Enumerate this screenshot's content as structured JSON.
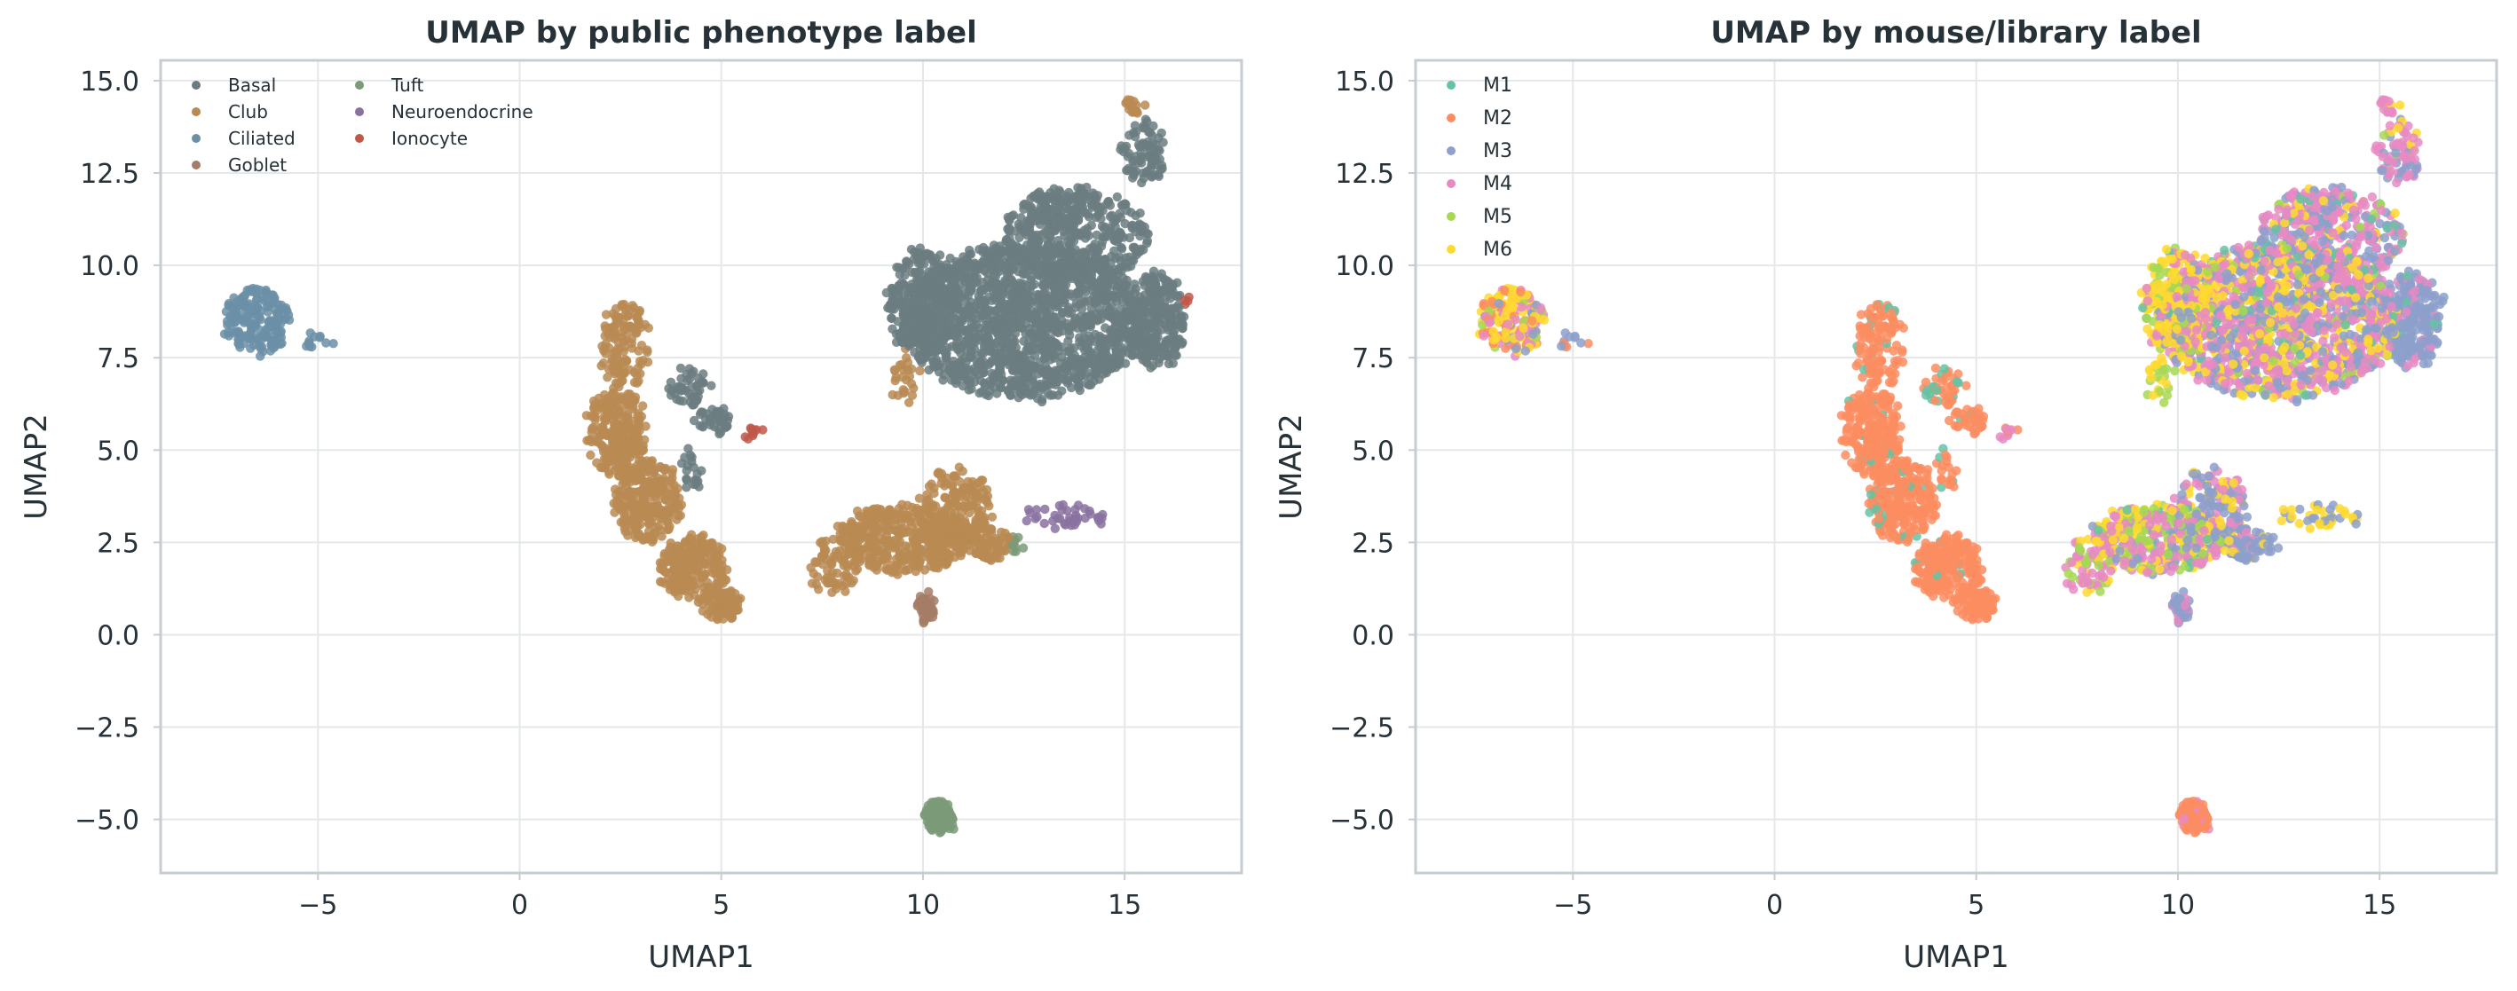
{
  "chart_data": [
    {
      "type": "scatter",
      "title": "UMAP by public phenotype label",
      "xlabel": "UMAP1",
      "ylabel": "UMAP2",
      "xlim": [
        -8.9,
        17.9
      ],
      "ylim": [
        -6.45,
        15.55
      ],
      "xticks": [
        -5,
        0,
        5,
        10,
        15
      ],
      "xtick_labels": [
        "−5",
        "0",
        "5",
        "10",
        "15"
      ],
      "yticks": [
        -5.0,
        -2.5,
        0.0,
        2.5,
        5.0,
        7.5,
        10.0,
        12.5,
        15.0
      ],
      "ytick_labels": [
        "−5.0",
        "−2.5",
        "0.0",
        "2.5",
        "5.0",
        "7.5",
        "10.0",
        "12.5",
        "15.0"
      ],
      "grid": true,
      "legend_position": "top-left",
      "legend_columns": 2,
      "series": [
        {
          "name": "Basal",
          "color": "#6b7c80"
        },
        {
          "name": "Club",
          "color": "#b88a52"
        },
        {
          "name": "Ciliated",
          "color": "#6b8fa7"
        },
        {
          "name": "Goblet",
          "color": "#a57c66"
        },
        {
          "name": "Tuft",
          "color": "#7a9a78"
        },
        {
          "name": "Neuroendocrine",
          "color": "#8a72a0"
        },
        {
          "name": "Ionocyte",
          "color": "#c0584a"
        }
      ]
    },
    {
      "type": "scatter",
      "title": "UMAP by mouse/library label",
      "xlabel": "UMAP1",
      "ylabel": "UMAP2",
      "xlim": [
        -8.9,
        17.9
      ],
      "ylim": [
        -6.45,
        15.55
      ],
      "xticks": [
        -5,
        0,
        5,
        10,
        15
      ],
      "xtick_labels": [
        "−5",
        "0",
        "5",
        "10",
        "15"
      ],
      "yticks": [
        -5.0,
        -2.5,
        0.0,
        2.5,
        5.0,
        7.5,
        10.0,
        12.5,
        15.0
      ],
      "ytick_labels": [
        "−5.0",
        "−2.5",
        "0.0",
        "2.5",
        "5.0",
        "7.5",
        "10.0",
        "12.5",
        "15.0"
      ],
      "grid": true,
      "legend_position": "top-left",
      "legend_columns": 1,
      "series": [
        {
          "name": "M1",
          "color": "#66c2a5"
        },
        {
          "name": "M2",
          "color": "#fc8d62"
        },
        {
          "name": "M3",
          "color": "#8da0cb"
        },
        {
          "name": "M4",
          "color": "#e78ac3"
        },
        {
          "name": "M5",
          "color": "#a6d854"
        },
        {
          "name": "M6",
          "color": "#ffd92f"
        }
      ]
    }
  ],
  "clusters": [
    {
      "cx": -6.5,
      "cy": 8.5,
      "rx": 0.8,
      "ry": 0.9,
      "n": 180,
      "a": "Ciliated",
      "m": {
        "M6": 0.35,
        "M4": 0.25,
        "M2": 0.2,
        "M3": 0.12,
        "M5": 0.08
      }
    },
    {
      "cx": -5.0,
      "cy": 7.9,
      "rx": 0.35,
      "ry": 0.2,
      "n": 12,
      "a": "Ciliated",
      "m": {
        "M3": 0.6,
        "M2": 0.4
      }
    },
    {
      "cx": 2.6,
      "cy": 7.8,
      "rx": 0.6,
      "ry": 1.2,
      "n": 120,
      "a": "Club",
      "m": {
        "M2": 0.92,
        "M1": 0.08
      }
    },
    {
      "cx": 2.4,
      "cy": 5.5,
      "rx": 0.7,
      "ry": 1.2,
      "n": 220,
      "a": "Club",
      "m": {
        "M2": 0.95,
        "M1": 0.05
      }
    },
    {
      "cx": 3.2,
      "cy": 3.6,
      "rx": 0.85,
      "ry": 1.1,
      "n": 250,
      "a": "Club",
      "m": {
        "M2": 0.95,
        "M1": 0.05
      }
    },
    {
      "cx": 4.3,
      "cy": 1.8,
      "rx": 0.8,
      "ry": 0.9,
      "n": 220,
      "a": "Club",
      "m": {
        "M2": 0.95,
        "M1": 0.05
      }
    },
    {
      "cx": 5.0,
      "cy": 0.8,
      "rx": 0.5,
      "ry": 0.45,
      "n": 90,
      "a": "Club",
      "m": {
        "M2": 0.97,
        "M1": 0.03
      }
    },
    {
      "cx": 4.2,
      "cy": 6.7,
      "rx": 0.5,
      "ry": 0.5,
      "n": 45,
      "a": "Basal",
      "m": {
        "M2": 0.8,
        "M1": 0.2
      }
    },
    {
      "cx": 4.8,
      "cy": 5.8,
      "rx": 0.45,
      "ry": 0.35,
      "n": 35,
      "a": "Basal",
      "m": {
        "M2": 0.75,
        "M1": 0.25
      }
    },
    {
      "cx": 4.2,
      "cy": 4.5,
      "rx": 0.4,
      "ry": 0.6,
      "n": 20,
      "a": "Basal",
      "m": {
        "M2": 0.9,
        "M1": 0.1
      }
    },
    {
      "cx": 5.8,
      "cy": 5.5,
      "rx": 0.3,
      "ry": 0.12,
      "n": 10,
      "a": "Ionocyte",
      "m": {
        "M4": 0.6,
        "M2": 0.4
      }
    },
    {
      "cx": 12.5,
      "cy": 8.5,
      "rx": 3.0,
      "ry": 2.1,
      "n": 1500,
      "a": "Basal",
      "m": {
        "M4": 0.4,
        "M6": 0.25,
        "M3": 0.25,
        "M5": 0.05,
        "M1": 0.05
      }
    },
    {
      "cx": 13.8,
      "cy": 10.8,
      "rx": 1.8,
      "ry": 1.3,
      "n": 450,
      "a": "Basal",
      "m": {
        "M4": 0.5,
        "M3": 0.3,
        "M6": 0.1,
        "M5": 0.05,
        "M1": 0.05
      }
    },
    {
      "cx": 15.5,
      "cy": 13.0,
      "rx": 0.5,
      "ry": 0.9,
      "n": 80,
      "a": "Basal",
      "m": {
        "M4": 0.55,
        "M3": 0.25,
        "M6": 0.15,
        "M5": 0.05
      }
    },
    {
      "cx": 15.2,
      "cy": 14.3,
      "rx": 0.25,
      "ry": 0.2,
      "n": 15,
      "a": "Club",
      "m": {
        "M4": 0.5,
        "M6": 0.5
      }
    },
    {
      "cx": 15.8,
      "cy": 8.5,
      "rx": 0.7,
      "ry": 1.3,
      "n": 250,
      "a": "Basal",
      "m": {
        "M3": 0.8,
        "M4": 0.15,
        "M1": 0.05
      }
    },
    {
      "cx": 10.0,
      "cy": 9.0,
      "rx": 0.9,
      "ry": 1.5,
      "n": 280,
      "a": "Basal",
      "m": {
        "M6": 0.6,
        "M5": 0.2,
        "M4": 0.15,
        "M1": 0.05
      }
    },
    {
      "cx": 9.5,
      "cy": 7.0,
      "rx": 0.3,
      "ry": 0.8,
      "n": 25,
      "a": "Club",
      "m": {
        "M5": 0.5,
        "M6": 0.5
      }
    },
    {
      "cx": 9.5,
      "cy": 2.6,
      "rx": 1.7,
      "ry": 0.9,
      "n": 420,
      "a": "Club",
      "m": {
        "M4": 0.4,
        "M6": 0.25,
        "M5": 0.2,
        "M3": 0.1,
        "M1": 0.05
      }
    },
    {
      "cx": 7.8,
      "cy": 1.9,
      "rx": 0.6,
      "ry": 0.8,
      "n": 70,
      "a": "Club",
      "m": {
        "M4": 0.55,
        "M5": 0.25,
        "M6": 0.2
      }
    },
    {
      "cx": 10.8,
      "cy": 3.5,
      "rx": 0.9,
      "ry": 1.0,
      "n": 160,
      "a": "Club",
      "m": {
        "M3": 0.5,
        "M4": 0.3,
        "M6": 0.2
      }
    },
    {
      "cx": 11.6,
      "cy": 2.5,
      "rx": 0.5,
      "ry": 0.5,
      "n": 80,
      "a": "Club",
      "m": {
        "M3": 0.7,
        "M4": 0.2,
        "M6": 0.1
      }
    },
    {
      "cx": 10.1,
      "cy": 0.7,
      "rx": 0.2,
      "ry": 0.45,
      "n": 40,
      "a": "Goblet",
      "m": {
        "M3": 0.8,
        "M4": 0.2
      }
    },
    {
      "cx": 12.3,
      "cy": 2.4,
      "rx": 0.1,
      "ry": 0.25,
      "n": 10,
      "a": "Tuft",
      "m": {
        "M3": 1.0
      }
    },
    {
      "cx": 13.5,
      "cy": 3.2,
      "rx": 1.1,
      "ry": 0.3,
      "n": 40,
      "a": "Neuroendocrine",
      "m": {
        "M6": 0.7,
        "M3": 0.3
      }
    },
    {
      "cx": 10.4,
      "cy": -4.9,
      "rx": 0.35,
      "ry": 0.45,
      "n": 110,
      "a": "Tuft",
      "m": {
        "M2": 0.9,
        "M4": 0.1
      }
    },
    {
      "cx": 16.5,
      "cy": 9.0,
      "rx": 0.15,
      "ry": 0.15,
      "n": 4,
      "a": "Ionocyte",
      "m": {
        "M3": 1.0
      }
    }
  ]
}
